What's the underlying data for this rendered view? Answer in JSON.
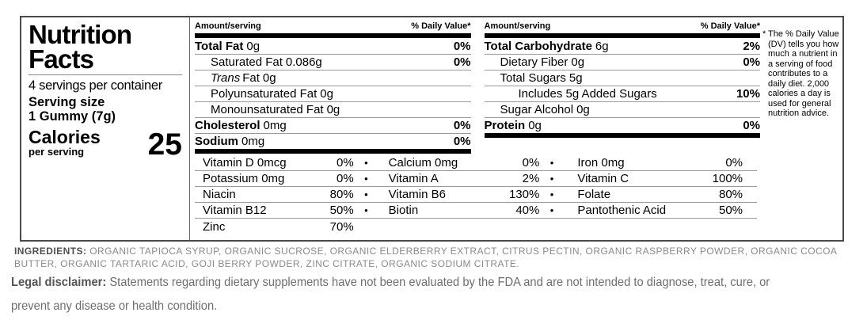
{
  "colors": {
    "text": "#000000",
    "thick_bar": "#000000",
    "hairline": "#999999",
    "box_border": "#4a4a4a",
    "ingredients_gray": "#8a8a8a",
    "legal_gray": "#6e6e6e"
  },
  "panel": {
    "title_line1": "Nutrition",
    "title_line2": "Facts",
    "servings_per_container": "4 servings per container",
    "serving_size_label": "Serving size",
    "serving_size_value": "1 Gummy (7g)",
    "calories_label": "Calories",
    "calories_sublabel": "per serving",
    "calories_value": "25"
  },
  "columns": [
    {
      "header_amount": "Amount/serving",
      "header_dv": "% Daily Value*",
      "rows": [
        {
          "name": "Total Fat",
          "amount": "0g",
          "dv": "0%"
        },
        {
          "name": "Saturated Fat",
          "amount": "0.086g",
          "dv": "0%"
        },
        {
          "name_prefix_italic": "Trans",
          "name": "Fat",
          "amount": "0g",
          "dv": ""
        },
        {
          "name": "Polyunsaturated Fat",
          "amount": "0g",
          "dv": ""
        },
        {
          "name": "Monounsaturated Fat",
          "amount": "0g",
          "dv": ""
        },
        {
          "name": "Cholesterol",
          "amount": "0mg",
          "dv": "0%"
        },
        {
          "name": "Sodium",
          "amount": "0mg",
          "dv": "0%"
        }
      ]
    },
    {
      "header_amount": "Amount/serving",
      "header_dv": "% Daily Value*",
      "rows": [
        {
          "name": "Total Carbohydrate",
          "amount": "6g",
          "dv": "2%"
        },
        {
          "name": "Dietary Fiber",
          "amount": "0g",
          "dv": "0%"
        },
        {
          "name": "Total Sugars",
          "amount": "5g",
          "dv": ""
        },
        {
          "name": "Includes 5g Added Sugars",
          "amount": "",
          "dv": "10%"
        },
        {
          "name": "Sugar Alcohol",
          "amount": "0g",
          "dv": ""
        },
        {
          "name": "Protein",
          "amount": "0g",
          "dv": "0%"
        }
      ]
    }
  ],
  "vitamins": {
    "bullet": "•",
    "rows": [
      {
        "a": {
          "label": "Vitamin D 0mcg",
          "dv": "0%"
        },
        "b": {
          "label": "Calcium 0mg",
          "dv": "0%"
        },
        "c": {
          "label": "Iron 0mg",
          "dv": "0%"
        }
      },
      {
        "a": {
          "label": "Potassium 0mg",
          "dv": "0%"
        },
        "b": {
          "label": "Vitamin A",
          "dv": "2%"
        },
        "c": {
          "label": "Vitamin C",
          "dv": "100%"
        }
      },
      {
        "a": {
          "label": "Niacin",
          "dv": "80%"
        },
        "b": {
          "label": "Vitamin B6",
          "dv": "130%"
        },
        "c": {
          "label": "Folate",
          "dv": "80%"
        }
      },
      {
        "a": {
          "label": "Vitamin B12",
          "dv": "50%"
        },
        "b": {
          "label": "Biotin",
          "dv": "40%"
        },
        "c": {
          "label": "Pantothenic Acid",
          "dv": "50%"
        }
      },
      {
        "a": {
          "label": "Zinc",
          "dv": "70%"
        },
        "b": {
          "label": "",
          "dv": ""
        },
        "c": {
          "label": "",
          "dv": ""
        }
      }
    ]
  },
  "footnote": {
    "marker": "*",
    "text": "The % Daily Value (DV) tells you how much a nutrient in a serving of food contributes to a daily diet. 2,000 calories a day is used for general nutrition advice."
  },
  "ingredients": {
    "label": "INGREDIENTS:",
    "text": "ORGANIC TAPIOCA SYRUP, ORGANIC SUCROSE, ORGANIC ELDERBERRY EXTRACT, CITRUS PECTIN, ORGANIC RASPBERRY POWDER, ORGANIC COCOA BUTTER, ORGANIC TARTARIC ACID, GOJI BERRY POWDER, ZINC CITRATE, ORGANIC SODIUM CITRATE."
  },
  "legal": {
    "label": "Legal disclaimer:",
    "text": "Statements regarding dietary supplements have not been evaluated by the FDA and are not intended to diagnose, treat, cure, or prevent any disease or health condition."
  }
}
